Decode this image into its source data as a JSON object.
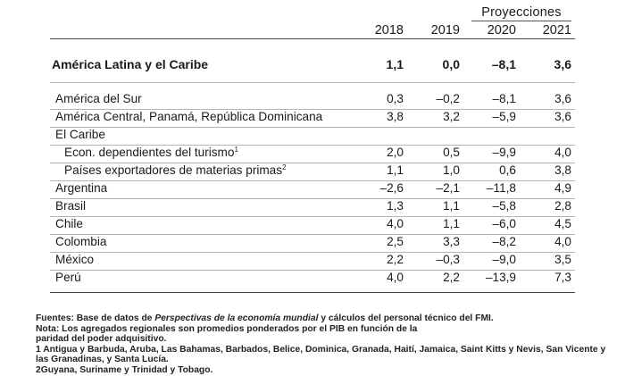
{
  "header": {
    "projections_label": "Proyecciones",
    "years": [
      "2018",
      "2019",
      "2020",
      "2021"
    ]
  },
  "rows": [
    {
      "label": "América Latina y el Caribe",
      "values": [
        "1,1",
        "0,0",
        "–8,1",
        "3,6"
      ],
      "bold": true
    },
    {
      "label": "América del Sur",
      "values": [
        "0,3",
        "–0,2",
        "–8,1",
        "3,6"
      ]
    },
    {
      "label": "América Central, Panamá, República Dominicana",
      "values": [
        "3,8",
        "3,2",
        "–5,9",
        "3,6"
      ]
    },
    {
      "label": "El Caribe",
      "values": [
        "",
        "",
        "",
        ""
      ]
    },
    {
      "label": "Econ. dependientes del turismo",
      "sup": "1",
      "values": [
        "2,0",
        "0,5",
        "–9,9",
        "4,0"
      ],
      "indent": true
    },
    {
      "label": "Países exportadores de materias primas",
      "sup": "2",
      "values": [
        "1,1",
        "1,0",
        "0,6",
        "3,8"
      ],
      "indent": true
    },
    {
      "label": "Argentina",
      "values": [
        "–2,6",
        "–2,1",
        "–11,8",
        "4,9"
      ]
    },
    {
      "label": "Brasil",
      "values": [
        "1,3",
        "1,1",
        "–5,8",
        "2,8"
      ]
    },
    {
      "label": "Chile",
      "values": [
        "4,0",
        "1,1",
        "–6,0",
        "4,5"
      ]
    },
    {
      "label": "Colombia",
      "values": [
        "2,5",
        "3,3",
        "–8,2",
        "4,0"
      ]
    },
    {
      "label": "México",
      "values": [
        "2,2",
        "–0,3",
        "–9,0",
        "3,5"
      ]
    },
    {
      "label": "Perú",
      "values": [
        "4,0",
        "2,2",
        "–13,9",
        "7,3"
      ]
    }
  ],
  "notes": {
    "sources_prefix": "Fuentes: Base de datos de ",
    "sources_italic": "Perspectivas de la economía mundial",
    "sources_suffix": " y cálculos del personal técnico del FMI.",
    "note": "Nota: Los agregados regionales son promedios ponderados por el PIB en función de la paridad del poder adquisitivo.",
    "footnote1": "1 Antigua y Barbuda, Aruba, Las Bahamas, Barbados, Belice, Dominica, Granada, Haití, Jamaica, Saint Kitts y Nevis, San Vicente y las Granadinas, y Santa Lucía.",
    "footnote2": "2Guyana, Suriname y Trinidad y Tobago."
  }
}
